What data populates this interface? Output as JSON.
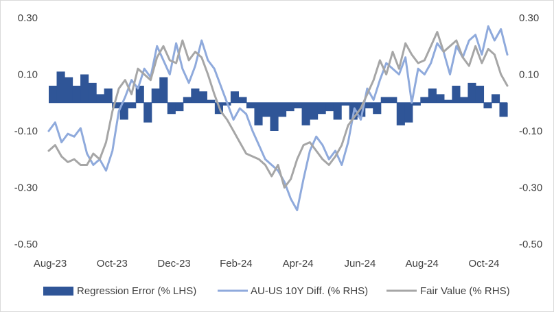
{
  "chart_data": {
    "type": "area",
    "title": "",
    "x_labels": [
      "Aug-23",
      "Oct-23",
      "Dec-23",
      "Feb-24",
      "Apr-24",
      "Jun-24",
      "Aug-24",
      "Oct-24"
    ],
    "ylim_left": [
      -0.5,
      0.3
    ],
    "ylim_right": [
      -0.5,
      0.3
    ],
    "yticks_left": [
      "0.30",
      "0.10",
      "-0.10",
      "-0.30",
      "-0.50"
    ],
    "yticks_right": [
      "0.30",
      "0.10",
      "-0.10",
      "-0.30",
      "-0.50"
    ],
    "grid": false,
    "legend_position": "bottom",
    "colors": {
      "regression_error": "#2f5597",
      "au_us_diff": "#8faadc",
      "fair_value": "#a6a6a6"
    },
    "series": [
      {
        "name": "Regression Error (% LHS)",
        "type": "area",
        "axis": "left",
        "values": [
          0.06,
          0.11,
          0.09,
          0.06,
          0.1,
          0.07,
          0.03,
          0.05,
          -0.02,
          -0.06,
          -0.02,
          0.06,
          -0.07,
          0.05,
          0.09,
          -0.04,
          -0.03,
          0.02,
          0.05,
          0.04,
          0.01,
          -0.04,
          -0.01,
          0.04,
          0.02,
          -0.02,
          -0.08,
          -0.05,
          -0.1,
          -0.05,
          -0.03,
          -0.02,
          -0.08,
          -0.06,
          -0.04,
          -0.03,
          -0.06,
          -0.01,
          -0.06,
          -0.05,
          -0.02,
          -0.04,
          0.02,
          0.02,
          -0.08,
          -0.07,
          -0.01,
          0.02,
          0.05,
          0.03,
          0.01,
          0.06,
          0.02,
          0.07,
          0.06,
          -0.02,
          0.03,
          -0.05
        ]
      },
      {
        "name": "AU-US 10Y Diff. (% RHS)",
        "type": "line",
        "axis": "right",
        "values": [
          -0.1,
          -0.07,
          -0.14,
          -0.11,
          -0.12,
          -0.09,
          -0.18,
          -0.22,
          -0.2,
          -0.24,
          -0.17,
          -0.03,
          0.02,
          0.08,
          0.05,
          0.12,
          0.09,
          0.2,
          0.15,
          0.1,
          0.21,
          0.12,
          0.07,
          0.13,
          0.22,
          0.15,
          0.12,
          0.06,
          0.0,
          -0.06,
          -0.02,
          -0.04,
          -0.1,
          -0.15,
          -0.2,
          -0.22,
          -0.24,
          -0.28,
          -0.34,
          -0.38,
          -0.27,
          -0.17,
          -0.12,
          -0.15,
          -0.2,
          -0.17,
          -0.22,
          -0.14,
          -0.02,
          -0.06,
          0.05,
          0.01,
          0.08,
          0.14,
          0.12,
          0.1,
          0.16,
          0.0,
          0.12,
          0.1,
          0.14,
          0.21,
          0.18,
          0.1,
          0.2,
          0.16,
          0.22,
          0.24,
          0.17,
          0.27,
          0.22,
          0.26,
          0.17
        ]
      },
      {
        "name": "Fair Value (% RHS)",
        "type": "line",
        "axis": "right",
        "values": [
          -0.17,
          -0.15,
          -0.19,
          -0.21,
          -0.2,
          -0.22,
          -0.22,
          -0.18,
          -0.2,
          -0.14,
          -0.03,
          0.05,
          0.08,
          0.03,
          0.12,
          0.1,
          0.08,
          0.16,
          0.2,
          0.15,
          0.14,
          0.22,
          0.15,
          0.18,
          0.16,
          0.1,
          0.03,
          -0.03,
          -0.06,
          -0.1,
          -0.14,
          -0.18,
          -0.19,
          -0.2,
          -0.22,
          -0.26,
          -0.22,
          -0.3,
          -0.27,
          -0.2,
          -0.15,
          -0.14,
          -0.17,
          -0.2,
          -0.22,
          -0.19,
          -0.15,
          -0.08,
          -0.05,
          -0.02,
          0.03,
          0.08,
          0.15,
          0.1,
          0.18,
          0.12,
          0.21,
          0.17,
          0.14,
          0.15,
          0.2,
          0.25,
          0.18,
          0.2,
          0.22,
          0.16,
          0.13,
          0.2,
          0.14,
          0.19,
          0.17,
          0.1,
          0.06
        ]
      }
    ]
  }
}
